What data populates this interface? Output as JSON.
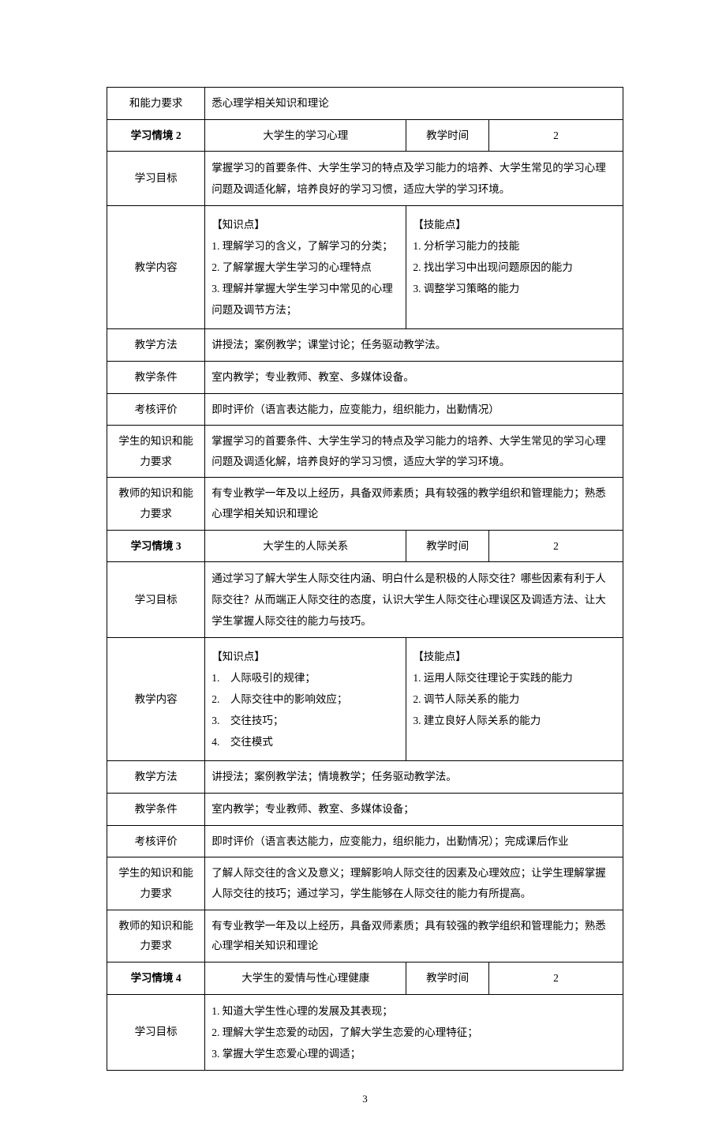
{
  "labels": {
    "ability_req": "和能力要求",
    "situation2": "学习情境 2",
    "situation3": "学习情境 3",
    "situation4": "学习情境 4",
    "goal": "学习目标",
    "content": "教学内容",
    "method": "教学方法",
    "condition": "教学条件",
    "evaluation": "考核评价",
    "student_req": "学生的知识和能力要求",
    "teacher_req": "教师的知识和能力要求",
    "time": "教学时间"
  },
  "row0": "悉心理学相关知识和理论",
  "s2": {
    "title": "大学生的学习心理",
    "time": "2",
    "goal": "掌握学习的首要条件、大学生学习的特点及学习能力的培养、大学生常见的学习心理问题及调适化解，培养良好的学习习惯，适应大学的学习环境。",
    "knowledge_h": "【知识点】",
    "knowledge": [
      "1. 理解学习的含义，了解学习的分类；",
      "2. 了解掌握大学生学习的心理特点",
      "3. 理解并掌握大学生学习中常见的心理问题及调节方法；"
    ],
    "skill_h": "【技能点】",
    "skill": [
      "1. 分析学习能力的技能",
      "2. 找出学习中出现问题原因的能力",
      "3. 调整学习策略的能力"
    ],
    "method": "讲授法；案例教学；课堂讨论；任务驱动教学法。",
    "condition": "室内教学；专业教师、教室、多媒体设备。",
    "evaluation": "即时评价（语言表达能力，应变能力，组织能力，出勤情况）",
    "student": "掌握学习的首要条件、大学生学习的特点及学习能力的培养、大学生常见的学习心理问题及调适化解，培养良好的学习习惯，适应大学的学习环境。",
    "teacher": "有专业教学一年及以上经历，具备双师素质；具有较强的教学组织和管理能力；熟悉心理学相关知识和理论"
  },
  "s3": {
    "title": "大学生的人际关系",
    "time": "2",
    "goal": "通过学习了解大学生人际交往内涵、明白什么是积极的人际交往？哪些因素有利于人际交往？从而端正人际交往的态度，认识大学生人际交往心理误区及调适方法、让大学生掌握人际交往的能力与技巧。",
    "knowledge_h": "【知识点】",
    "knowledge": [
      "1.　人际吸引的规律；",
      "2.　人际交往中的影响效应；",
      "3.　交往技巧；",
      "4.　交往模式"
    ],
    "skill_h": "【技能点】",
    "skill": [
      "1. 运用人际交往理论于实践的能力",
      "2. 调节人际关系的能力",
      "3. 建立良好人际关系的能力"
    ],
    "method": "讲授法；案例教学法；情境教学；任务驱动教学法。",
    "condition": "室内教学；专业教师、教室、多媒体设备；",
    "evaluation": "即时评价（语言表达能力，应变能力，组织能力，出勤情况）；完成课后作业",
    "student": "了解人际交往的含义及意义；理解影响人际交往的因素及心理效应；让学生理解掌握人际交往的技巧；通过学习，学生能够在人际交往的能力有所提高。",
    "teacher": "有专业教学一年及以上经历，具备双师素质；具有较强的教学组织和管理能力；熟悉心理学相关知识和理论"
  },
  "s4": {
    "title": "大学生的爱情与性心理健康",
    "time": "2",
    "goal": [
      "1. 知道大学生性心理的发展及其表现；",
      "2. 理解大学生恋爱的动因，了解大学生恋爱的心理特征；",
      "3. 掌握大学生恋爱心理的调适；"
    ]
  },
  "page_num": "3",
  "colors": {
    "border": "#000000",
    "text": "#000000",
    "bg": "#ffffff"
  },
  "font": {
    "body": "SimSun",
    "size_pt": 10.5
  }
}
